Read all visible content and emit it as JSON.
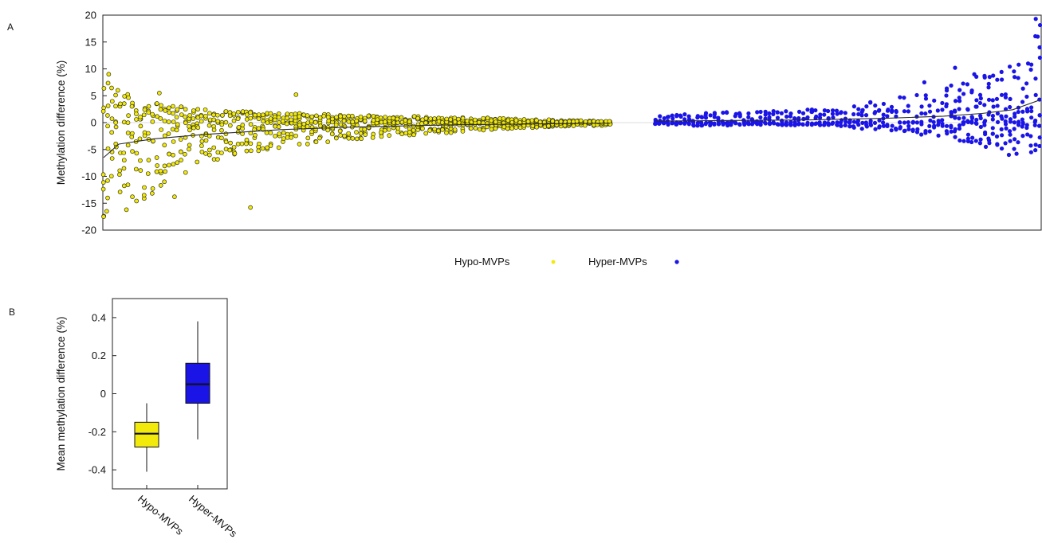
{
  "panels": {
    "a_label": "A",
    "b_label": "B"
  },
  "colors": {
    "hypo": "#f2ea0a",
    "hyper": "#1a14e6",
    "trend": "#2a2a2a",
    "zero_line": "#dddddd"
  },
  "legend": {
    "position": "bottom-center",
    "hypo_label": "Hypo-MVPs",
    "hyper_label": "Hyper-MVPs"
  },
  "chart_data": [
    {
      "type": "scatter",
      "title": "",
      "xlabel": "",
      "ylabel": "Methylation difference (%)",
      "ylim": [
        -20,
        20
      ],
      "yticks": [
        20,
        15,
        10,
        5,
        0,
        -5,
        -10,
        -15,
        -20
      ],
      "grid": false,
      "zero_reference_line": true,
      "x_axis": "probes ordered; no tick labels",
      "series": [
        {
          "name": "Hypo-MVPs",
          "marker": "circle-outline",
          "summary": "negative differences; spread widest at left (about -17.5 to 9) narrowing to near 0 at right",
          "envelope": [
            {
              "x": 0,
              "ymin": -17.5,
              "ymax": 9
            },
            {
              "x": 0.05,
              "ymin": -16,
              "ymax": 5.5
            },
            {
              "x": 0.1,
              "ymin": -13.5,
              "ymax": 4
            },
            {
              "x": 0.15,
              "ymin": -10,
              "ymax": 3
            },
            {
              "x": 0.2,
              "ymin": -8,
              "ymax": 2.5
            },
            {
              "x": 0.3,
              "ymin": -6,
              "ymax": 2
            },
            {
              "x": 0.4,
              "ymin": -4.5,
              "ymax": 1.7
            },
            {
              "x": 0.5,
              "ymin": -3.2,
              "ymax": 1.4
            },
            {
              "x": 0.6,
              "ymin": -2.4,
              "ymax": 1.2
            },
            {
              "x": 0.7,
              "ymin": -1.8,
              "ymax": 1
            },
            {
              "x": 0.8,
              "ymin": -1.2,
              "ymax": 0.8
            },
            {
              "x": 0.9,
              "ymin": -0.8,
              "ymax": 0.5
            },
            {
              "x": 1,
              "ymin": -0.5,
              "ymax": 0.3
            }
          ],
          "outliers": [
            {
              "x": 0.0,
              "y": -17.5
            },
            {
              "x": 0.006,
              "y": -16.5
            },
            {
              "x": 0.01,
              "y": 9
            },
            {
              "x": 0.045,
              "y": -16.2
            },
            {
              "x": 0.028,
              "y": 6
            },
            {
              "x": 0.11,
              "y": 5.5
            },
            {
              "x": 0.08,
              "y": -13.5
            },
            {
              "x": 0.14,
              "y": -13.8
            },
            {
              "x": 0.29,
              "y": -15.8
            },
            {
              "x": 0.38,
              "y": 5.2
            },
            {
              "x": 0.12,
              "y": -11
            }
          ],
          "trend": [
            {
              "x": 0,
              "y": -6.5
            },
            {
              "x": 0.03,
              "y": -4
            },
            {
              "x": 0.1,
              "y": -3
            },
            {
              "x": 0.2,
              "y": -2.2
            },
            {
              "x": 0.35,
              "y": -1.3
            },
            {
              "x": 0.5,
              "y": -0.8
            },
            {
              "x": 0.7,
              "y": -0.4
            },
            {
              "x": 0.9,
              "y": -0.2
            },
            {
              "x": 1,
              "y": -0.1
            }
          ]
        },
        {
          "name": "Hyper-MVPs",
          "marker": "filled-circle",
          "summary": "positive differences; spread narrow at left (about -0.3 to 1.8) widening at right (about -6 to 19)",
          "envelope": [
            {
              "x": 0,
              "ymin": -0.3,
              "ymax": 1.2
            },
            {
              "x": 0.1,
              "ymin": -0.6,
              "ymax": 1.8
            },
            {
              "x": 0.2,
              "ymin": -0.6,
              "ymax": 2
            },
            {
              "x": 0.3,
              "ymin": -0.5,
              "ymax": 2.2
            },
            {
              "x": 0.4,
              "ymin": -0.5,
              "ymax": 2.5
            },
            {
              "x": 0.5,
              "ymin": -0.8,
              "ymax": 3.2
            },
            {
              "x": 0.6,
              "ymin": -1.8,
              "ymax": 4.5
            },
            {
              "x": 0.7,
              "ymin": -2.5,
              "ymax": 5.5
            },
            {
              "x": 0.8,
              "ymin": -3.5,
              "ymax": 8
            },
            {
              "x": 0.9,
              "ymin": -5,
              "ymax": 10
            },
            {
              "x": 0.95,
              "ymin": -5.5,
              "ymax": 11
            },
            {
              "x": 1,
              "ymin": -6,
              "ymax": 19
            }
          ],
          "outliers": [
            {
              "x": 0.99,
              "y": 19.3
            },
            {
              "x": 0.995,
              "y": 16
            },
            {
              "x": 1.0,
              "y": 14
            },
            {
              "x": 0.97,
              "y": 11
            },
            {
              "x": 0.78,
              "y": 10.2
            },
            {
              "x": 0.83,
              "y": 9
            },
            {
              "x": 0.87,
              "y": 8.5
            },
            {
              "x": 0.92,
              "y": -6
            },
            {
              "x": 0.94,
              "y": -5.8
            },
            {
              "x": 0.86,
              "y": -4.5
            },
            {
              "x": 0.7,
              "y": 7.5
            }
          ],
          "trend": [
            {
              "x": 0,
              "y": 0.3
            },
            {
              "x": 0.2,
              "y": 0.4
            },
            {
              "x": 0.4,
              "y": 0.5
            },
            {
              "x": 0.6,
              "y": 0.8
            },
            {
              "x": 0.75,
              "y": 1.2
            },
            {
              "x": 0.85,
              "y": 1.7
            },
            {
              "x": 0.93,
              "y": 2.4
            },
            {
              "x": 1,
              "y": 4.2
            }
          ]
        }
      ]
    },
    {
      "type": "box",
      "title": "",
      "xlabel": "",
      "ylabel": "Mean methylation difference (%)",
      "ylim": [
        -0.5,
        0.5
      ],
      "yticks": [
        0.4,
        0.2,
        0,
        -0.2,
        -0.4
      ],
      "ytick_labels": [
        "0.4",
        "0.2",
        "0",
        "-0.2",
        "-0.4"
      ],
      "categories": [
        "Hypo-MVPs",
        "Hyper-MVPs"
      ],
      "boxes": [
        {
          "name": "Hypo-MVPs",
          "whisker_low": -0.41,
          "q1": -0.28,
          "median": -0.21,
          "q3": -0.15,
          "whisker_high": -0.05
        },
        {
          "name": "Hyper-MVPs",
          "whisker_low": -0.24,
          "q1": -0.05,
          "median": 0.05,
          "q3": 0.16,
          "whisker_high": 0.38
        }
      ]
    }
  ]
}
